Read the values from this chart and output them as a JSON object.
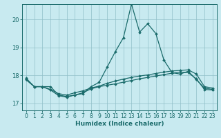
{
  "xlabel": "Humidex (Indice chaleur)",
  "x_ticks": [
    0,
    1,
    2,
    3,
    4,
    5,
    6,
    7,
    8,
    9,
    10,
    11,
    12,
    13,
    14,
    15,
    16,
    17,
    18,
    19,
    20,
    21,
    22,
    23
  ],
  "y_ticks": [
    17,
    18,
    19,
    20
  ],
  "ylim": [
    16.75,
    20.55
  ],
  "xlim": [
    -0.5,
    23.5
  ],
  "background_color": "#c8eaf0",
  "grid_color": "#90bfc8",
  "line_color": "#1a6b6b",
  "series1_x": [
    0,
    1,
    2,
    3,
    4,
    5,
    6,
    7,
    8,
    9,
    10,
    11,
    12,
    13,
    14,
    15,
    16,
    17,
    18,
    19,
    20,
    21,
    22,
    23
  ],
  "series1_y": [
    17.9,
    17.6,
    17.6,
    17.6,
    17.3,
    17.25,
    17.3,
    17.35,
    17.6,
    17.75,
    18.3,
    18.85,
    19.35,
    20.55,
    19.55,
    19.85,
    19.5,
    18.55,
    18.1,
    18.05,
    18.15,
    17.85,
    17.55,
    17.5
  ],
  "series2_x": [
    0,
    1,
    2,
    3,
    4,
    5,
    6,
    7,
    8,
    9,
    10,
    11,
    12,
    13,
    14,
    15,
    16,
    17,
    18,
    19,
    20,
    21,
    22,
    23
  ],
  "series2_y": [
    17.85,
    17.6,
    17.6,
    17.5,
    17.35,
    17.3,
    17.38,
    17.45,
    17.55,
    17.62,
    17.72,
    17.8,
    17.87,
    17.93,
    17.98,
    18.02,
    18.07,
    18.12,
    18.16,
    18.18,
    18.2,
    18.05,
    17.6,
    17.55
  ],
  "series3_x": [
    0,
    1,
    2,
    3,
    4,
    5,
    6,
    7,
    8,
    9,
    10,
    11,
    12,
    13,
    14,
    15,
    16,
    17,
    18,
    19,
    20,
    21,
    22,
    23
  ],
  "series3_y": [
    17.85,
    17.6,
    17.6,
    17.48,
    17.28,
    17.22,
    17.3,
    17.38,
    17.52,
    17.6,
    17.65,
    17.7,
    17.76,
    17.82,
    17.88,
    17.93,
    17.98,
    18.03,
    18.08,
    18.12,
    18.1,
    17.88,
    17.5,
    17.48
  ]
}
